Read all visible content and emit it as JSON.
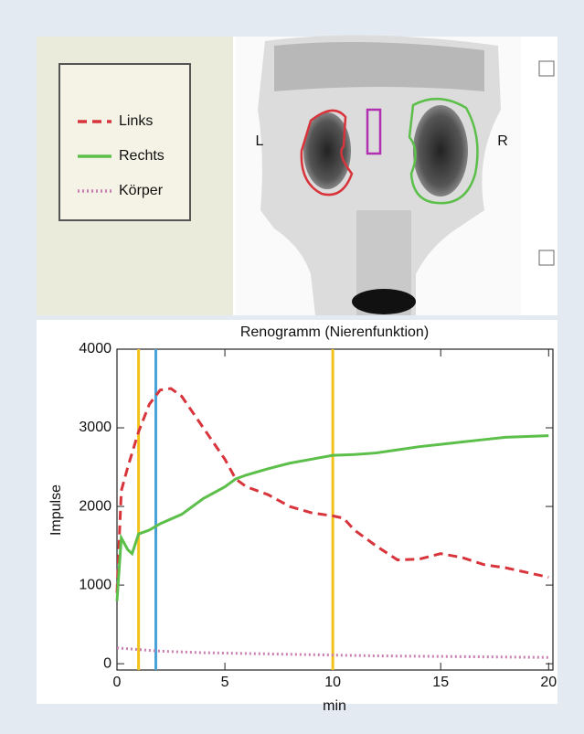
{
  "image": {
    "left_label": "L",
    "right_label": "R"
  },
  "chart_data": {
    "type": "line",
    "title": "Renogramm (Nierenfunktion)",
    "x_label": "min",
    "y_label": "Impulse",
    "xlim": [
      0,
      20.2
    ],
    "ylim": [
      -80,
      4000
    ],
    "xticks": [
      0,
      5,
      10,
      15,
      20
    ],
    "yticks": [
      0,
      1000,
      2000,
      3000,
      4000
    ],
    "markers": [
      {
        "x": 1,
        "color": "#f2c21b"
      },
      {
        "x": 1.8,
        "color": "#4aa3d8"
      },
      {
        "x": 10,
        "color": "#f2c21b"
      }
    ],
    "series": [
      {
        "name": "Links",
        "color": "#d8343c",
        "dash": "dashed",
        "x": [
          0,
          0.2,
          0.5,
          1,
          1.5,
          2,
          2.5,
          3,
          4,
          5,
          5.5,
          6,
          7,
          8,
          9,
          10,
          10.5,
          11,
          12,
          13,
          14,
          15,
          16,
          17,
          18,
          19,
          20
        ],
        "values": [
          900,
          2200,
          2500,
          2950,
          3300,
          3480,
          3500,
          3400,
          3000,
          2600,
          2350,
          2250,
          2150,
          2000,
          1920,
          1880,
          1850,
          1700,
          1500,
          1320,
          1330,
          1400,
          1350,
          1260,
          1220,
          1160,
          1100
        ]
      },
      {
        "name": "Rechts",
        "color": "#5cbf4a",
        "dash": "solid",
        "x": [
          0,
          0.2,
          0.5,
          0.7,
          1,
          1.5,
          2,
          3,
          4,
          5,
          5.5,
          6,
          7,
          8,
          9,
          10,
          11,
          12,
          13,
          14,
          15,
          16,
          17,
          18,
          19,
          20
        ],
        "values": [
          800,
          1600,
          1450,
          1400,
          1650,
          1700,
          1780,
          1900,
          2100,
          2250,
          2350,
          2400,
          2480,
          2550,
          2600,
          2650,
          2660,
          2680,
          2720,
          2760,
          2790,
          2820,
          2850,
          2880,
          2890,
          2900
        ]
      },
      {
        "name": "Körper",
        "color": "#c97fb0",
        "dash": "dotted",
        "x": [
          0,
          2,
          4,
          6,
          8,
          10,
          12,
          14,
          16,
          18,
          20
        ],
        "values": [
          200,
          160,
          140,
          130,
          120,
          110,
          100,
          95,
          90,
          85,
          80
        ]
      }
    ]
  }
}
